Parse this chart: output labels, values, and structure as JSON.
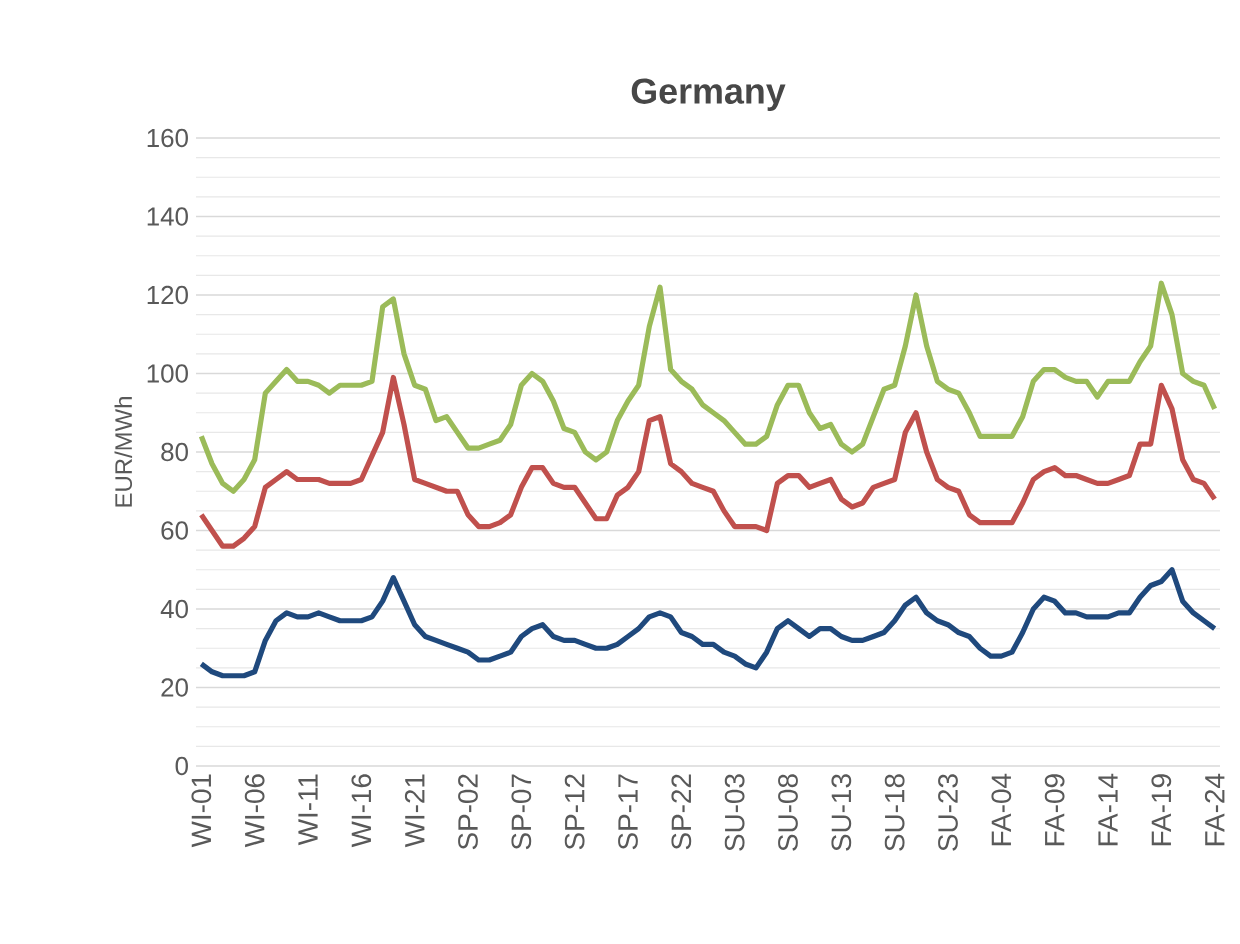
{
  "chart_data": {
    "type": "line",
    "title": "Germany",
    "ylabel": "EUR/MWh",
    "categories": [
      "WI-01",
      null,
      null,
      null,
      null,
      "WI-06",
      null,
      null,
      null,
      null,
      "WI-11",
      null,
      null,
      null,
      null,
      "WI-16",
      null,
      null,
      null,
      null,
      "WI-21",
      null,
      null,
      null,
      null,
      "SP-02",
      null,
      null,
      null,
      null,
      "SP-07",
      null,
      null,
      null,
      null,
      "SP-12",
      null,
      null,
      null,
      null,
      "SP-17",
      null,
      null,
      null,
      null,
      "SP-22",
      null,
      null,
      null,
      null,
      "SU-03",
      null,
      null,
      null,
      null,
      "SU-08",
      null,
      null,
      null,
      null,
      "SU-13",
      null,
      null,
      null,
      null,
      "SU-18",
      null,
      null,
      null,
      null,
      "SU-23",
      null,
      null,
      null,
      null,
      "FA-04",
      null,
      null,
      null,
      null,
      "FA-09",
      null,
      null,
      null,
      null,
      "FA-14",
      null,
      null,
      null,
      null,
      "FA-19",
      null,
      null,
      null,
      null,
      "FA-24"
    ],
    "series": [
      {
        "color": "#9bbb59",
        "values": [
          84,
          77,
          72,
          70,
          73,
          78,
          95,
          98,
          101,
          98,
          98,
          97,
          95,
          97,
          97,
          97,
          98,
          117,
          119,
          105,
          97,
          96,
          88,
          89,
          85,
          81,
          81,
          82,
          83,
          87,
          97,
          100,
          98,
          93,
          86,
          85,
          80,
          78,
          80,
          88,
          93,
          97,
          112,
          122,
          101,
          98,
          96,
          92,
          90,
          88,
          85,
          82,
          82,
          84,
          92,
          97,
          97,
          90,
          86,
          87,
          82,
          80,
          82,
          89,
          96,
          97,
          107,
          120,
          107,
          98,
          96,
          95,
          90,
          84,
          84,
          84,
          84,
          89,
          98,
          101,
          101,
          99,
          98,
          98,
          94,
          98,
          98,
          98,
          103,
          107,
          123,
          115,
          100,
          98,
          97,
          91
        ]
      },
      {
        "color": "#c0504d",
        "values": [
          64,
          60,
          56,
          56,
          58,
          61,
          71,
          73,
          75,
          73,
          73,
          73,
          72,
          72,
          72,
          73,
          79,
          85,
          99,
          87,
          73,
          72,
          71,
          70,
          70,
          64,
          61,
          61,
          62,
          64,
          71,
          76,
          76,
          72,
          71,
          71,
          67,
          63,
          63,
          69,
          71,
          75,
          88,
          89,
          77,
          75,
          72,
          71,
          70,
          65,
          61,
          61,
          61,
          60,
          72,
          74,
          74,
          71,
          72,
          73,
          68,
          66,
          67,
          71,
          72,
          73,
          85,
          90,
          80,
          73,
          71,
          70,
          64,
          62,
          62,
          62,
          62,
          67,
          73,
          75,
          76,
          74,
          74,
          73,
          72,
          72,
          73,
          74,
          82,
          82,
          97,
          91,
          78,
          73,
          72,
          68
        ]
      },
      {
        "color": "#1f497d",
        "values": [
          26,
          24,
          23,
          23,
          23,
          24,
          32,
          37,
          39,
          38,
          38,
          39,
          38,
          37,
          37,
          37,
          38,
          42,
          48,
          42,
          36,
          33,
          32,
          31,
          30,
          29,
          27,
          27,
          28,
          29,
          33,
          35,
          36,
          33,
          32,
          32,
          31,
          30,
          30,
          31,
          33,
          35,
          38,
          39,
          38,
          34,
          33,
          31,
          31,
          29,
          28,
          26,
          25,
          29,
          35,
          37,
          35,
          33,
          35,
          35,
          33,
          32,
          32,
          33,
          34,
          37,
          41,
          43,
          39,
          37,
          36,
          34,
          33,
          30,
          28,
          28,
          29,
          34,
          40,
          43,
          42,
          39,
          39,
          38,
          38,
          38,
          39,
          39,
          43,
          46,
          47,
          50,
          42,
          39,
          37,
          35
        ]
      }
    ],
    "ylim": [
      0,
      160
    ],
    "yticks": [
      0,
      20,
      40,
      60,
      80,
      100,
      120,
      140,
      160
    ],
    "grid": "y",
    "marker": "none",
    "line_style": "solid"
  }
}
